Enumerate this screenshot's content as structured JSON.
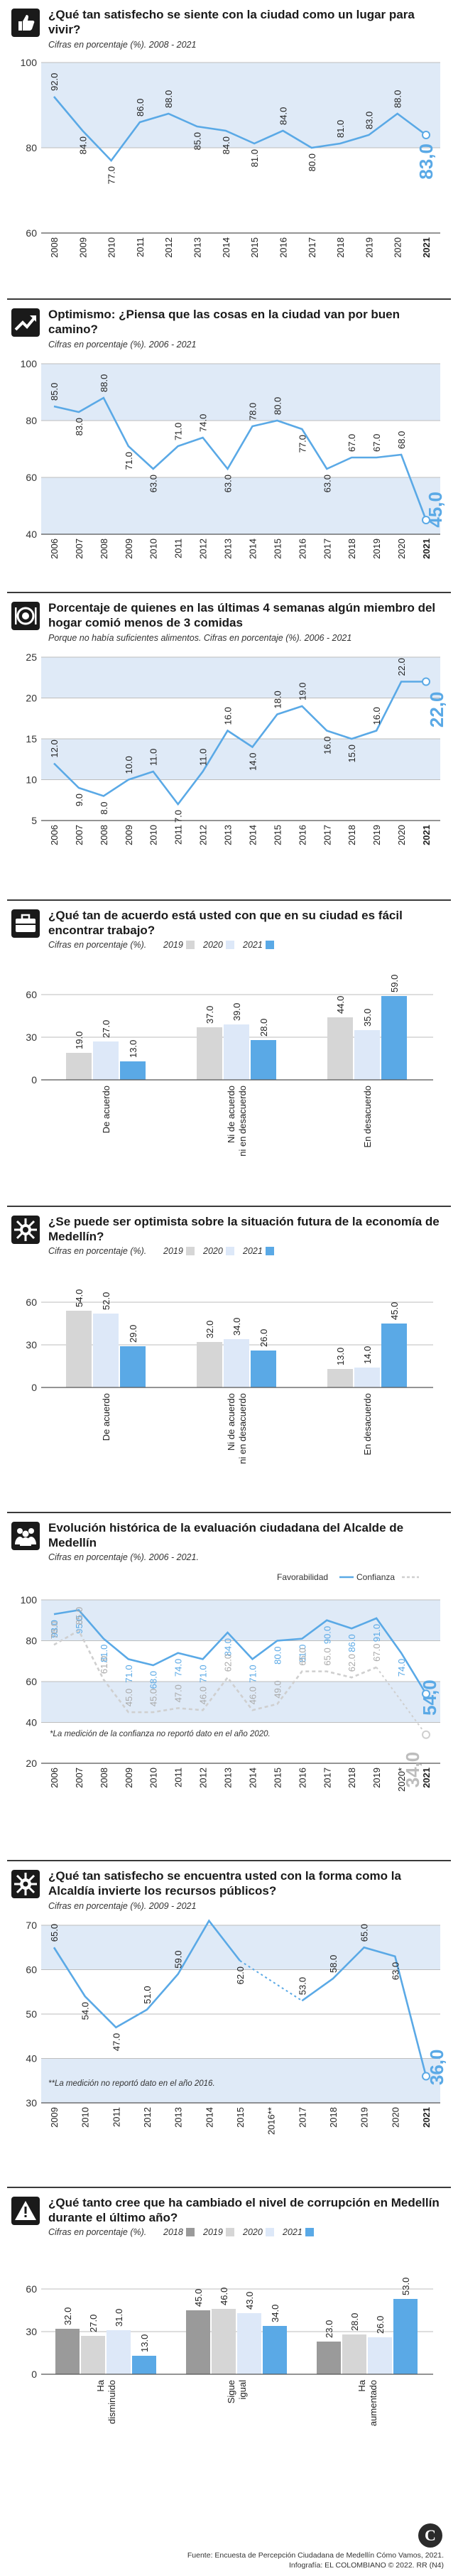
{
  "colors": {
    "accent": "#5aa9e6",
    "band": "#dfeaf7",
    "line": "#5aa9e6",
    "bar2019": "#d6d6d6",
    "bar2020": "#dde8f8",
    "bar2021": "#5aa9e6",
    "dashed": "#cfcfcf"
  },
  "footer": {
    "source": "Fuente: Encuesta de Percepción Ciudadana de Medellín Cómo Vamos, 2021.",
    "credit": "Infografía: EL COLOMBIANO © 2022. RR (N4)"
  },
  "sections": [
    {
      "icon": "thumbs-up-icon",
      "title": "¿Qué tan satisfecho se siente con la ciudad como un lugar para vivir?",
      "subtitle": "Cifras en porcentaje (%). 2008 - 2021"
    },
    {
      "icon": "trend-arrow-icon",
      "title": "Optimismo: ¿Piensa que las cosas en la ciudad van por buen camino?",
      "subtitle": "Cifras en porcentaje (%). 2006 - 2021"
    },
    {
      "icon": "plate-icon",
      "title": "Porcentaje de quienes en las últimas 4 semanas algún miembro del hogar comió menos de 3 comidas",
      "subtitle": "Porque no había suficientes alimentos. Cifras en porcentaje (%). 2006 - 2021"
    },
    {
      "icon": "briefcase-icon",
      "title": "¿Qué tan de acuerdo está usted con que en su ciudad es fácil encontrar trabajo?",
      "subtitle": "Cifras en porcentaje (%). 2019 2020 2021"
    },
    {
      "icon": "virus-icon",
      "title": "¿Se puede ser optimista sobre la situación futura de la economía de Medellín?",
      "subtitle": "Cifras en porcentaje (%). 2019 2020 2021"
    },
    {
      "icon": "people-icon",
      "title": "Evolución histórica de la evaluación ciudadana del Alcalde de Medellín",
      "subtitle": "Cifras en porcentaje (%). 2006 - 2021."
    },
    {
      "icon": "handshake-icon",
      "title": "¿Qué tan satisfecho se encuentra usted con la forma como la Alcaldía invierte los recursos públicos?",
      "subtitle": "Cifras en porcentaje (%). 2009 - 2021"
    },
    {
      "icon": "warning-icon",
      "title": "¿Qué tanto cree que ha cambiado el nivel de corrupción en Medellín durante el último año?",
      "subtitle": "Cifras en porcentaje (%). 2018 2019 2020 2021"
    }
  ],
  "chart_data": [
    {
      "type": "line",
      "x": [
        "2008",
        "2009",
        "2010",
        "2011",
        "2012",
        "2013",
        "2014",
        "2015",
        "2016",
        "2017",
        "2018",
        "2019",
        "2020",
        "2021"
      ],
      "series": [
        {
          "values": [
            92.0,
            84.0,
            77.0,
            86.0,
            88.0,
            85.0,
            84.0,
            81.0,
            84.0,
            80.0,
            81.0,
            83.0,
            88.0,
            83.0
          ]
        }
      ],
      "ylim": [
        60,
        100
      ],
      "yticks": [
        60,
        80,
        100
      ],
      "last_label": "83,0"
    },
    {
      "type": "line",
      "x": [
        "2006",
        "2007",
        "2008",
        "2009",
        "2010",
        "2011",
        "2012",
        "2013",
        "2014",
        "2015",
        "2016",
        "2017",
        "2018",
        "2019",
        "2020",
        "2021"
      ],
      "series": [
        {
          "values": [
            85.0,
            83.0,
            88.0,
            71.0,
            63.0,
            71.0,
            74.0,
            63.0,
            78.0,
            80.0,
            77.0,
            63.0,
            67.0,
            67.0,
            68.0,
            45.0
          ]
        }
      ],
      "ylim": [
        40,
        100
      ],
      "yticks": [
        40,
        60,
        80,
        100
      ],
      "last_label": "45,0"
    },
    {
      "type": "line",
      "x": [
        "2006",
        "2007",
        "2008",
        "2009",
        "2010",
        "2011",
        "2012",
        "2013",
        "2014",
        "2015",
        "2016",
        "2017",
        "2018",
        "2019",
        "2020",
        "2021"
      ],
      "series": [
        {
          "values": [
            12.0,
            9.0,
            8.0,
            10.0,
            11.0,
            7.0,
            11.0,
            16.0,
            14.0,
            18.0,
            19.0,
            16.0,
            15.0,
            16.0,
            22.0,
            22.0
          ]
        }
      ],
      "ylim": [
        5,
        25
      ],
      "yticks": [
        5,
        10,
        15,
        20,
        25
      ],
      "last_label": "22,0"
    },
    {
      "type": "bar",
      "legend": [
        "2019",
        "2020",
        "2021"
      ],
      "categories": [
        "De acuerdo",
        "Ni de acuerdo ni en desacuerdo",
        "En desacuerdo"
      ],
      "series": [
        {
          "name": "2019",
          "values": [
            19.0,
            37.0,
            44.0
          ]
        },
        {
          "name": "2020",
          "values": [
            27.0,
            39.0,
            35.0
          ]
        },
        {
          "name": "2021",
          "values": [
            13.0,
            28.0,
            59.0
          ]
        }
      ],
      "ylim": [
        0,
        60
      ],
      "yticks": [
        0,
        30,
        60
      ]
    },
    {
      "type": "bar",
      "legend": [
        "2019",
        "2020",
        "2021"
      ],
      "categories": [
        "De acuerdo",
        "Ni de acuerdo ni en desacuerdo",
        "En desacuerdo"
      ],
      "series": [
        {
          "name": "2019",
          "values": [
            54.0,
            32.0,
            13.0
          ]
        },
        {
          "name": "2020",
          "values": [
            52.0,
            34.0,
            14.0
          ]
        },
        {
          "name": "2021",
          "values": [
            29.0,
            26.0,
            45.0
          ]
        }
      ],
      "ylim": [
        0,
        60
      ],
      "yticks": [
        0,
        30,
        60
      ]
    },
    {
      "type": "line",
      "legend": [
        "Favorabilidad",
        "Confianza"
      ],
      "x": [
        "2006",
        "2007",
        "2008",
        "2009",
        "2010",
        "2011",
        "2012",
        "2013",
        "2014",
        "2015",
        "2016",
        "2017",
        "2018",
        "2019",
        "2020*",
        "2021"
      ],
      "series": [
        {
          "name": "Favorabilidad",
          "values": [
            93.0,
            95.0,
            81.0,
            71.0,
            68.0,
            74.0,
            71.0,
            84.0,
            71.0,
            80.0,
            81.0,
            90.0,
            86.0,
            91.0,
            74.0,
            54.0
          ]
        },
        {
          "name": "Confianza",
          "values": [
            78.0,
            85.0,
            61.0,
            45.0,
            45.0,
            47.0,
            46.0,
            62.0,
            46.0,
            49.0,
            65.0,
            65.0,
            62.0,
            67.0,
            null,
            34.0
          ]
        }
      ],
      "ylim": [
        20,
        100
      ],
      "yticks": [
        20,
        40,
        60,
        80,
        100
      ],
      "note": "*La medición de la confianza no reportó dato en el año 2020.",
      "last_fav": "54,0",
      "last_conf": "34,0"
    },
    {
      "type": "line",
      "x": [
        "2009",
        "2010",
        "2011",
        "2012",
        "2013",
        "2014",
        "2015",
        "2016**",
        "2017",
        "2018",
        "2019",
        "2020",
        "2021"
      ],
      "series": [
        {
          "values": [
            65.0,
            54.0,
            47.0,
            51.0,
            59.0,
            71.0,
            62.0,
            null,
            53.0,
            58.0,
            65.0,
            63.0,
            36.0
          ]
        }
      ],
      "ylim": [
        30,
        70
      ],
      "yticks": [
        30,
        40,
        50,
        60,
        70
      ],
      "note": "**La medición no reportó dato en el año 2016.",
      "last_label": "36,0"
    },
    {
      "type": "bar",
      "legend": [
        "2018",
        "2019",
        "2020",
        "2021"
      ],
      "categories": [
        "Ha disminuido",
        "Sigue igual",
        "Ha aumentado"
      ],
      "series": [
        {
          "name": "2018",
          "values": [
            32.0,
            45.0,
            23.0
          ]
        },
        {
          "name": "2019",
          "values": [
            27.0,
            46.0,
            28.0
          ]
        },
        {
          "name": "2020",
          "values": [
            31.0,
            43.0,
            26.0
          ]
        },
        {
          "name": "2021",
          "values": [
            13.0,
            34.0,
            53.0
          ]
        }
      ],
      "ylim": [
        0,
        60
      ],
      "yticks": [
        0,
        30,
        60
      ]
    }
  ]
}
